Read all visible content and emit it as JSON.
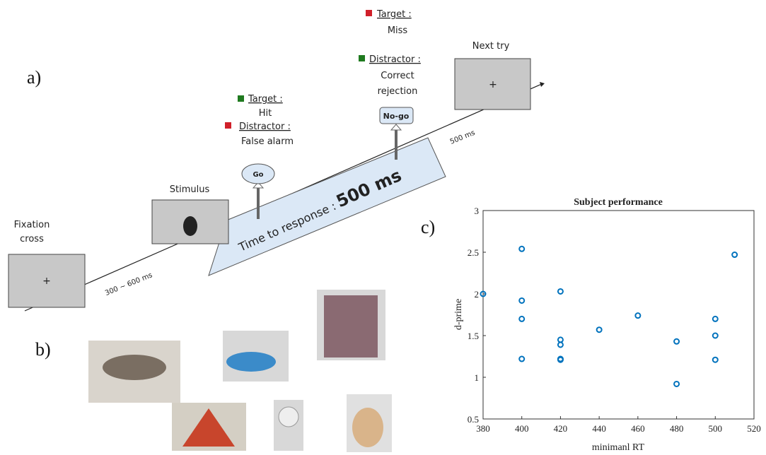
{
  "panels": {
    "a": "a)",
    "b": "b)",
    "c": "c)"
  },
  "diagram": {
    "fixation": [
      "Fixation",
      "cross"
    ],
    "stimulus": "Stimulus",
    "next_try": "Next try",
    "interval1": "300 ~ 600 ms",
    "interval2": "500 ms",
    "response_window": {
      "label": "Time to response :",
      "duration": "500 ms"
    },
    "go": "Go",
    "nogo": "No-go",
    "go_outcomes": {
      "target": "Target :",
      "target_result": "Hit",
      "distractor": "Distractor :",
      "distractor_result": "False alarm"
    },
    "nogo_outcomes": {
      "target": "Target :",
      "target_result": "Miss",
      "distractor": "Distractor :",
      "distractor_result": [
        "Correct",
        "rejection"
      ]
    }
  },
  "chart_data": {
    "type": "scatter",
    "title": "Subject performance",
    "x_label": "minimanl RT",
    "y_label": "d-prime",
    "x": [
      380,
      400,
      400,
      400,
      400,
      420,
      420,
      420,
      420,
      420,
      440,
      460,
      480,
      480,
      500,
      500,
      500,
      510
    ],
    "series": [
      {
        "color": "#0072bd",
        "values": [
          2.0,
          2.54,
          1.92,
          1.7,
          1.22,
          2.03,
          1.45,
          1.39,
          1.22,
          1.21,
          1.57,
          1.74,
          1.43,
          0.92,
          1.7,
          1.5,
          1.21,
          2.47
        ]
      }
    ],
    "xlim": [
      380,
      520
    ],
    "xticks": [
      380,
      400,
      420,
      440,
      460,
      480,
      500,
      520
    ],
    "ylim": [
      0.5,
      3
    ],
    "yticks": [
      0.5,
      1,
      1.5,
      2,
      2.5,
      3
    ]
  }
}
